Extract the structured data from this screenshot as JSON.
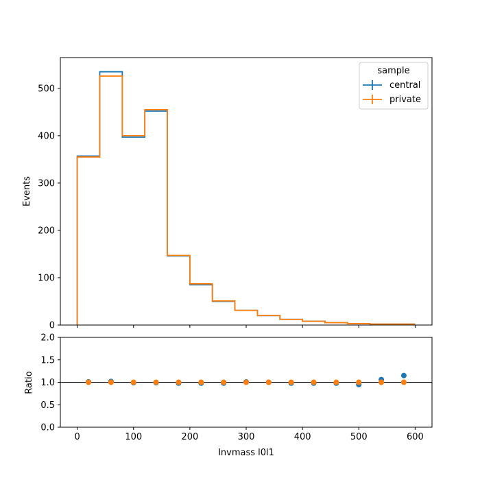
{
  "chart_data": [
    {
      "type": "line",
      "subtype": "step-histogram",
      "ylabel": "Events",
      "xlim": [
        -30,
        630
      ],
      "ylim": [
        0,
        565
      ],
      "yticks": [
        0,
        100,
        200,
        300,
        400,
        500
      ],
      "xticks": [
        0,
        100,
        200,
        300,
        400,
        500,
        600
      ],
      "bin_edges": [
        0,
        40,
        80,
        120,
        160,
        200,
        240,
        280,
        320,
        360,
        400,
        440,
        480,
        520,
        560,
        600
      ],
      "legend": {
        "title": "sample",
        "placement": "top-right"
      },
      "series": [
        {
          "name": "central",
          "color": "#1f77b4",
          "values": [
            357,
            535,
            397,
            452,
            146,
            85,
            50,
            31,
            20,
            12,
            8,
            5,
            3,
            2,
            2
          ]
        },
        {
          "name": "private",
          "color": "#ff7f0e",
          "values": [
            355,
            526,
            400,
            455,
            147,
            87,
            51,
            31,
            20,
            12,
            8,
            5,
            3,
            2,
            2
          ]
        }
      ]
    },
    {
      "type": "scatter",
      "xlabel": "Invmass l0l1",
      "ylabel": "Ratio",
      "xlim": [
        -30,
        630
      ],
      "ylim": [
        0,
        2
      ],
      "yticks": [
        "0.0",
        "0.5",
        "1.0",
        "1.5",
        "2.0"
      ],
      "xticks": [
        0,
        100,
        200,
        300,
        400,
        500,
        600
      ],
      "reference_line": 1.0,
      "series": [
        {
          "name": "central",
          "color": "#1f77b4",
          "x": [
            20,
            60,
            100,
            140,
            180,
            220,
            260,
            300,
            340,
            380,
            420,
            460,
            500,
            540,
            580
          ],
          "values": [
            1.01,
            1.02,
            0.99,
            0.99,
            0.98,
            0.98,
            0.98,
            1.01,
            1.0,
            0.98,
            0.98,
            0.98,
            0.95,
            1.06,
            1.15
          ]
        },
        {
          "name": "private",
          "color": "#ff7f0e",
          "x": [
            20,
            60,
            100,
            140,
            180,
            220,
            260,
            300,
            340,
            380,
            420,
            460,
            500,
            540,
            580
          ],
          "values": [
            1.0,
            1.0,
            1.0,
            1.0,
            1.0,
            1.0,
            1.0,
            1.0,
            1.0,
            1.0,
            1.0,
            1.0,
            1.0,
            1.0,
            1.0
          ]
        }
      ]
    }
  ]
}
